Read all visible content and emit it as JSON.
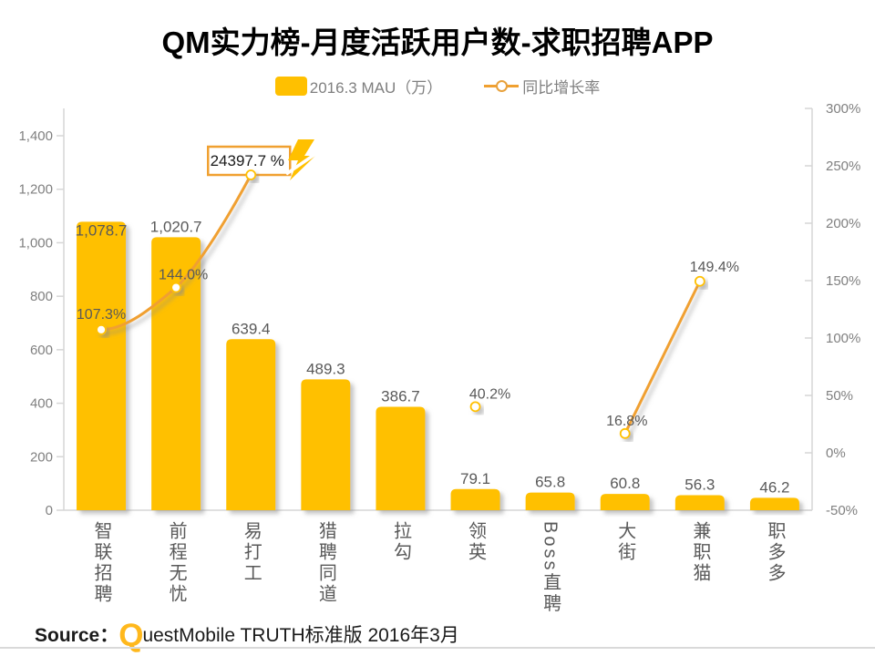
{
  "title": "QM实力榜-月度活跃用户数-求职招聘APP",
  "legend": {
    "bar_label": "2016.3 MAU（万）",
    "line_label": "同比增长率"
  },
  "footer": {
    "source_label": "Source：",
    "brand_q": "Q",
    "brand_rest": "uestMobile",
    "suffix": " TRUTH标准版 2016年3月"
  },
  "colors": {
    "bar": "#FFC000",
    "line": "#F0A030",
    "marker_ring": "#FFC000",
    "axis_line": "#D6D6D6",
    "axis_text": "#808080",
    "value_text": "#595959",
    "callout_border": "#F0A030",
    "callout_text": "#1a1a1a",
    "bolt": "#FFC000"
  },
  "chart_data": {
    "type": "bar",
    "subtype": "combo-bar-line-dual-axis",
    "title": "QM实力榜-月度活跃用户数-求职招聘APP",
    "categories": [
      "智联招聘",
      "前程无忧",
      "易打工",
      "猎聘同道",
      "拉勾",
      "领英",
      "Boss直聘",
      "大街",
      "兼职猫",
      "职多多"
    ],
    "series": [
      {
        "name": "2016.3 MAU（万）",
        "type": "bar",
        "axis": "left",
        "values": [
          1078.7,
          1020.7,
          639.4,
          489.3,
          386.7,
          79.1,
          65.8,
          60.8,
          56.3,
          46.2
        ],
        "value_labels": [
          "1,078.7",
          "1,020.7",
          "639.4",
          "489.3",
          "386.7",
          "79.1",
          "65.8",
          "60.8",
          "56.3",
          "46.2"
        ]
      },
      {
        "name": "同比增长率",
        "type": "line",
        "axis": "right",
        "values": [
          107.3,
          144.0,
          24397.7,
          null,
          null,
          40.2,
          null,
          16.8,
          149.4,
          null
        ],
        "value_labels": [
          "107.3%",
          "144.0%",
          "24397.7 %",
          null,
          null,
          "40.2%",
          null,
          "16.8%",
          "149.4%",
          null
        ],
        "clipped_callout": {
          "category": "易打工",
          "label": "24397.7 %"
        }
      }
    ],
    "left_axis": {
      "min": 0,
      "max": 1400,
      "ticks": [
        "0",
        "200",
        "400",
        "600",
        "800",
        "1,000",
        "1,200",
        "1,400"
      ]
    },
    "right_axis": {
      "min": -50,
      "max": 300,
      "ticks": [
        "-50%",
        "0%",
        "50%",
        "100%",
        "150%",
        "200%",
        "250%",
        "300%"
      ]
    },
    "legend_position": "top",
    "grid": false
  }
}
